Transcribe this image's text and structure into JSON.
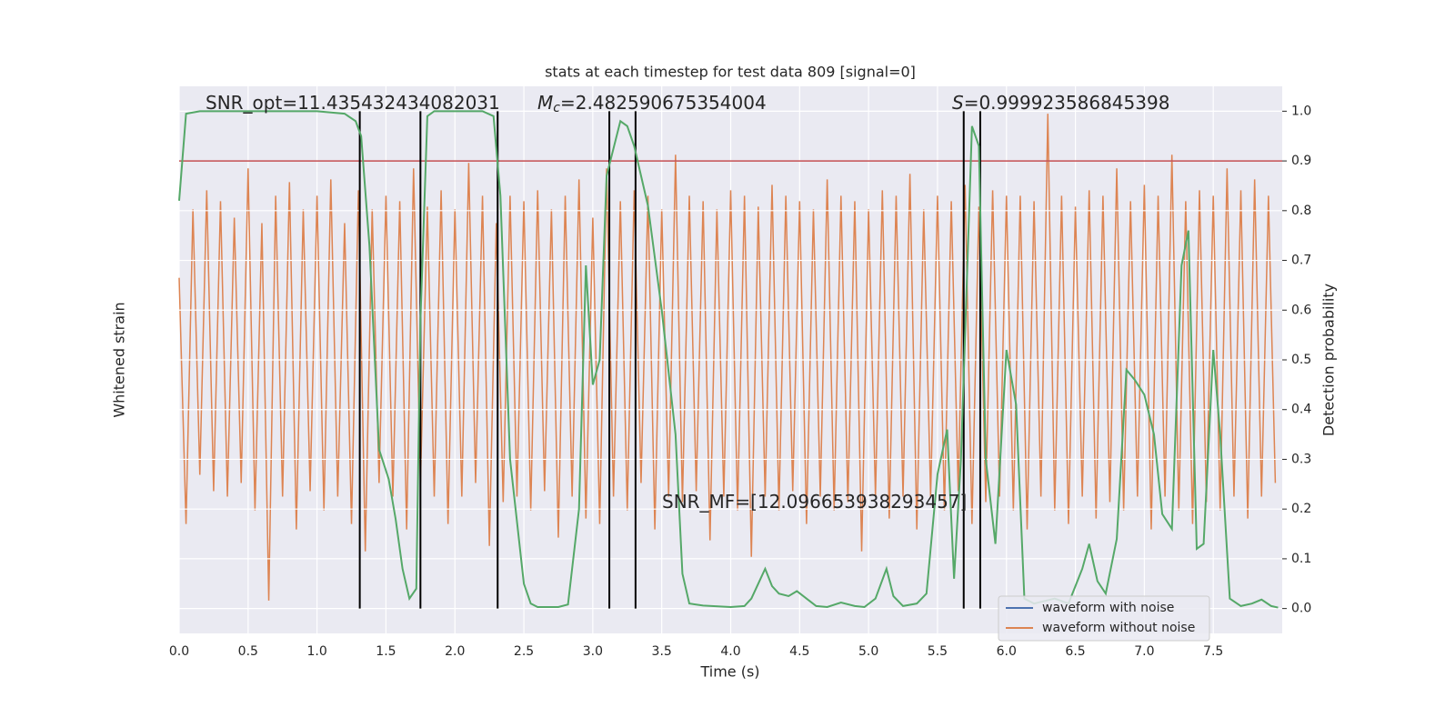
{
  "chart_data": {
    "type": "line",
    "title": "stats at each timestep for test data 809 [signal=0]",
    "xlabel": "Time (s)",
    "ylabel": "Whitened strain",
    "y2label": "Detection probability",
    "xlim": [
      0,
      8.0
    ],
    "ylim": [
      -1,
      1
    ],
    "y2lim": [
      -0.05,
      1.05
    ],
    "xticks": [
      {
        "value": 0,
        "label": "0.0"
      },
      0.5,
      {
        "value": 1,
        "label": "1.0"
      },
      1.5,
      {
        "value": 2,
        "label": "2.0"
      },
      2.5,
      {
        "value": 3,
        "label": "3.0"
      },
      3.5,
      {
        "value": 4,
        "label": "4.0"
      },
      4.5,
      {
        "value": 5,
        "label": "5.0"
      },
      5.5,
      {
        "value": 6,
        "label": "6.0"
      },
      6.5,
      {
        "value": 7,
        "label": "7.0"
      },
      7.5
    ],
    "y2ticks": [
      {
        "value": 0,
        "label": "0.0"
      },
      0.1,
      0.2,
      0.3,
      0.4,
      0.5,
      0.6,
      0.7,
      0.8,
      0.9,
      {
        "value": 1,
        "label": "1.0"
      }
    ],
    "grid": true,
    "legend": "lower right",
    "annotations": [
      {
        "text": "SNR_opt=11.435432434082031"
      },
      {
        "symbol": "M",
        "subscript": "c",
        "text": "=2.482590675354004"
      },
      {
        "symbol": "S",
        "text": "=0.999923586845398"
      },
      {
        "text": "SNR_MF=[12.096653938293457]"
      }
    ],
    "series": [
      {
        "name": "waveform with noise",
        "color": "#4c72b0"
      },
      {
        "name": "waveform without noise",
        "color": "#dd8452",
        "x": [
          0,
          0.05,
          0.1,
          0.15,
          0.2,
          0.25,
          0.3,
          0.35,
          0.4,
          0.45,
          0.5,
          0.55,
          0.6,
          0.65,
          0.7,
          0.75,
          0.8,
          0.85,
          0.9,
          0.95,
          1,
          1.05,
          1.1,
          1.15,
          1.2,
          1.25,
          1.3,
          1.35,
          1.4,
          1.45,
          1.5,
          1.55,
          1.6,
          1.65,
          1.7,
          1.75,
          1.8,
          1.85,
          1.9,
          1.95,
          2,
          2.05,
          2.1,
          2.15,
          2.2,
          2.25,
          2.3,
          2.35,
          2.4,
          2.45,
          2.5,
          2.55,
          2.6,
          2.65,
          2.7,
          2.75,
          2.8,
          2.85,
          2.9,
          2.95,
          3,
          3.05,
          3.1,
          3.15,
          3.2,
          3.25,
          3.3,
          3.35,
          3.4,
          3.45,
          3.5,
          3.55,
          3.6,
          3.65,
          3.7,
          3.75,
          3.8,
          3.85,
          3.9,
          3.95,
          4,
          4.05,
          4.1,
          4.15,
          4.2,
          4.25,
          4.3,
          4.35,
          4.4,
          4.45,
          4.5,
          4.55,
          4.6,
          4.65,
          4.7,
          4.75,
          4.8,
          4.85,
          4.9,
          4.95,
          5,
          5.05,
          5.1,
          5.15,
          5.2,
          5.25,
          5.3,
          5.35,
          5.4,
          5.45,
          5.5,
          5.55,
          5.6,
          5.65,
          5.7,
          5.75,
          5.8,
          5.85,
          5.9,
          5.95,
          6,
          6.05,
          6.1,
          6.15,
          6.2,
          6.25,
          6.3,
          6.35,
          6.4,
          6.45,
          6.5,
          6.55,
          6.6,
          6.65,
          6.7,
          6.75,
          6.8,
          6.85,
          6.9,
          6.95,
          7,
          7.05,
          7.1,
          7.15,
          7.2,
          7.25,
          7.3,
          7.35,
          7.4,
          7.45,
          7.5,
          7.55,
          7.6,
          7.65,
          7.7,
          7.75,
          7.8,
          7.85,
          7.9,
          7.95
        ],
        "values": [
          0.3,
          -0.6,
          0.55,
          -0.42,
          0.62,
          -0.48,
          0.58,
          -0.5,
          0.52,
          -0.45,
          0.7,
          -0.55,
          0.5,
          -0.88,
          0.6,
          -0.5,
          0.65,
          -0.62,
          0.55,
          -0.48,
          0.6,
          -0.55,
          0.66,
          -0.5,
          0.5,
          -0.6,
          0.62,
          -0.7,
          0.55,
          -0.45,
          0.6,
          -0.5,
          0.58,
          -0.62,
          0.7,
          -0.45,
          0.56,
          -0.5,
          0.62,
          -0.6,
          0.55,
          -0.5,
          0.72,
          -0.45,
          0.6,
          -0.68,
          0.5,
          -0.52,
          0.6,
          -0.5,
          0.58,
          -0.55,
          0.62,
          -0.48,
          0.55,
          -0.65,
          0.6,
          -0.5,
          0.66,
          -0.58,
          0.52,
          -0.6,
          0.7,
          -0.5,
          0.58,
          -0.55,
          0.62,
          -0.45,
          0.6,
          -0.62,
          0.55,
          -0.5,
          0.75,
          -0.52,
          0.6,
          -0.48,
          0.58,
          -0.66,
          0.55,
          -0.5,
          0.62,
          -0.55,
          0.6,
          -0.72,
          0.56,
          -0.5,
          0.64,
          -0.55,
          0.6,
          -0.48,
          0.58,
          -0.6,
          0.55,
          -0.5,
          0.66,
          -0.55,
          0.6,
          -0.52,
          0.58,
          -0.7,
          0.55,
          -0.5,
          0.62,
          -0.58,
          0.6,
          -0.5,
          0.68,
          -0.62,
          0.55,
          -0.5,
          0.6,
          -0.55,
          0.58,
          -0.48,
          0.64,
          -0.6,
          0.56,
          -0.52,
          0.62,
          -0.5,
          0.6,
          -0.55,
          0.6,
          -0.62,
          0.58,
          -0.5,
          0.9,
          -0.55,
          0.6,
          -0.6,
          0.56,
          -0.5,
          0.62,
          -0.58,
          0.6,
          -0.52,
          0.7,
          -0.55,
          0.58,
          -0.5,
          0.64,
          -0.62,
          0.6,
          -0.5,
          0.75,
          -0.55,
          0.58,
          -0.6,
          0.62,
          -0.52,
          0.6,
          -0.55,
          0.7,
          -0.5,
          0.62,
          -0.58,
          0.66,
          -0.5,
          0.6,
          -0.45
        ]
      }
    ],
    "probability": {
      "color": "#55a868",
      "axis": "y2",
      "x": [
        0,
        0.05,
        0.15,
        0.5,
        1,
        1.2,
        1.28,
        1.32,
        1.38,
        1.45,
        1.52,
        1.57,
        1.62,
        1.67,
        1.72,
        1.75,
        1.8,
        1.85,
        2,
        2.2,
        2.28,
        2.33,
        2.4,
        2.5,
        2.55,
        2.6,
        2.75,
        2.82,
        2.9,
        2.95,
        3,
        3.05,
        3.1,
        3.2,
        3.25,
        3.3,
        3.4,
        3.5,
        3.6,
        3.65,
        3.7,
        3.8,
        4,
        4.1,
        4.15,
        4.2,
        4.25,
        4.3,
        4.35,
        4.42,
        4.48,
        4.55,
        4.62,
        4.7,
        4.8,
        4.9,
        4.97,
        5.05,
        5.13,
        5.18,
        5.25,
        5.35,
        5.42,
        5.5,
        5.57,
        5.62,
        5.67,
        5.75,
        5.8,
        5.85,
        5.92,
        6,
        6.07,
        6.13,
        6.2,
        6.35,
        6.45,
        6.55,
        6.6,
        6.66,
        6.72,
        6.8,
        6.87,
        6.93,
        7,
        7.07,
        7.13,
        7.2,
        7.27,
        7.32,
        7.38,
        7.43,
        7.5,
        7.55,
        7.62,
        7.7,
        7.78,
        7.85,
        7.92,
        7.97
      ],
      "values": [
        0.82,
        0.995,
        1,
        1,
        1,
        0.995,
        0.98,
        0.95,
        0.73,
        0.32,
        0.26,
        0.18,
        0.08,
        0.02,
        0.04,
        0.58,
        0.99,
        1,
        1,
        1,
        0.99,
        0.83,
        0.3,
        0.05,
        0.01,
        0.003,
        0.003,
        0.008,
        0.2,
        0.69,
        0.45,
        0.5,
        0.87,
        0.98,
        0.97,
        0.93,
        0.81,
        0.6,
        0.35,
        0.07,
        0.01,
        0.006,
        0.003,
        0.005,
        0.02,
        0.05,
        0.08,
        0.045,
        0.03,
        0.025,
        0.035,
        0.02,
        0.005,
        0.003,
        0.012,
        0.005,
        0.003,
        0.02,
        0.08,
        0.025,
        0.005,
        0.01,
        0.03,
        0.27,
        0.36,
        0.06,
        0.3,
        0.97,
        0.93,
        0.3,
        0.13,
        0.52,
        0.41,
        0.02,
        0.01,
        0.02,
        0.01,
        0.08,
        0.13,
        0.055,
        0.03,
        0.14,
        0.48,
        0.46,
        0.43,
        0.35,
        0.19,
        0.16,
        0.69,
        0.76,
        0.12,
        0.13,
        0.52,
        0.35,
        0.02,
        0.005,
        0.01,
        0.018,
        0.005,
        0.002
      ]
    },
    "threshold": {
      "value": 0.9,
      "color": "#c44e52",
      "axis": "y2"
    },
    "vlines": {
      "x": [
        1.31,
        1.75,
        2.31,
        3.12,
        3.31,
        5.69,
        5.81
      ],
      "color": "#000000",
      "ymin": 0,
      "ymax": 1
    }
  }
}
